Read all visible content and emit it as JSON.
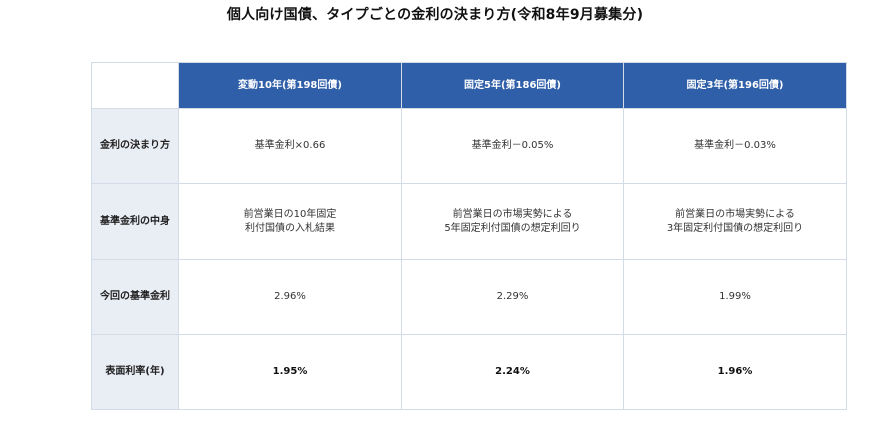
{
  "title": "個人向け国債、タイプごとの金利の決まり方(令和8年9月募集分)",
  "columns": [
    "変動10年(第198回債)",
    "固定5年(第186回債)",
    "固定3年(第196回債)"
  ],
  "rows": [
    {
      "label": "金利の決まり方",
      "cells": [
        [
          "基準金利×0.66"
        ],
        [
          "基準金利－0.05%"
        ],
        [
          "基準金利－0.03%"
        ]
      ]
    },
    {
      "label": "基準金利の中身",
      "cells": [
        [
          "前営業日の10年固定",
          "利付国債の入札結果"
        ],
        [
          "前営業日の市場実勢による",
          "5年固定利付国債の想定利回り"
        ],
        [
          "前営業日の市場実勢による",
          "3年固定利付国債の想定利回り"
        ]
      ]
    },
    {
      "label": "今回の基準金利",
      "cells": [
        [
          "2.96%"
        ],
        [
          "2.29%"
        ],
        [
          "1.99%"
        ]
      ]
    },
    {
      "label": "表面利率(年)",
      "cells": [
        [
          "1.95%"
        ],
        [
          "2.24%"
        ],
        [
          "1.96%"
        ]
      ]
    }
  ],
  "colors": {
    "header_bg": "#2f5fa8",
    "row_header_bg": "#e9edf4",
    "border": "#d3dce6"
  }
}
